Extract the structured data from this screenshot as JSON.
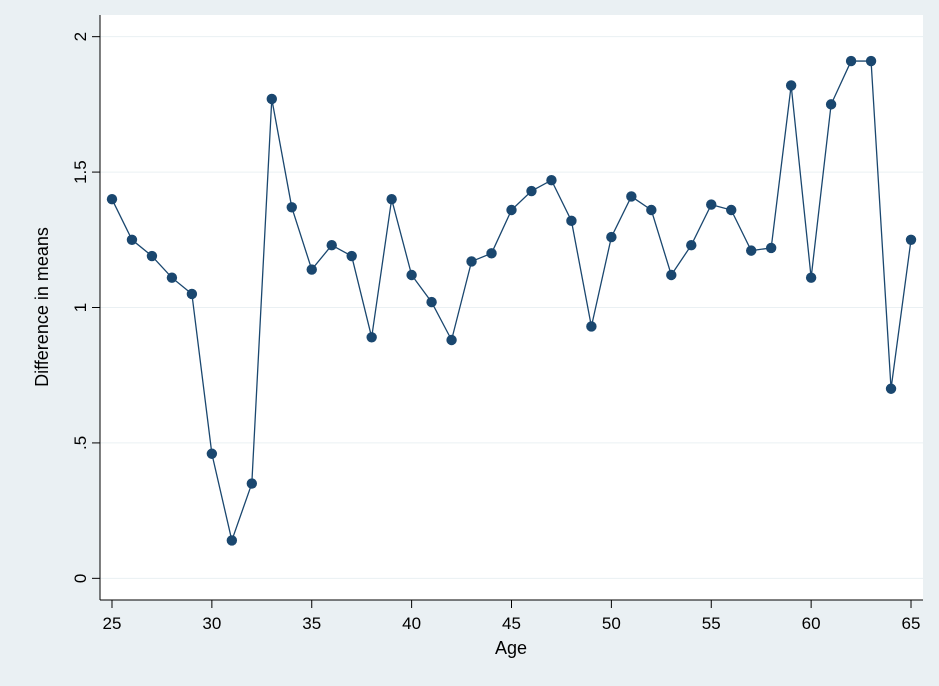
{
  "chart_data": {
    "type": "line",
    "xlabel": "Age",
    "ylabel": "Difference in means",
    "xlim": [
      24.4,
      65.6
    ],
    "ylim": [
      -0.08,
      2.08
    ],
    "xticks": [
      25,
      30,
      35,
      40,
      45,
      50,
      55,
      60,
      65
    ],
    "xtick_labels": [
      "25",
      "30",
      "35",
      "40",
      "45",
      "50",
      "55",
      "60",
      "65"
    ],
    "yticks": [
      0,
      0.5,
      1,
      1.5,
      2
    ],
    "ytick_labels": [
      "0",
      ".5",
      "1",
      "1.5",
      "2"
    ],
    "grid": true,
    "colors": {
      "background": "#eaf0f3",
      "plot_area": "#ffffff",
      "series": "#1a476f",
      "grid": "#eaf0f3"
    },
    "series": [
      {
        "x": [
          25,
          26,
          27,
          28,
          29,
          30,
          31,
          32,
          33,
          34,
          35,
          36,
          37,
          38,
          39,
          40,
          41,
          42,
          43,
          44,
          45,
          46,
          47,
          48,
          49,
          50,
          51,
          52,
          53,
          54,
          55,
          56,
          57,
          58,
          59,
          60,
          61,
          62,
          63,
          64,
          65
        ],
        "values": [
          1.4,
          1.25,
          1.19,
          1.11,
          1.05,
          0.46,
          0.14,
          0.35,
          1.77,
          1.37,
          1.14,
          1.23,
          1.19,
          0.89,
          1.4,
          1.12,
          1.02,
          0.88,
          1.17,
          1.2,
          1.36,
          1.43,
          1.47,
          1.32,
          0.93,
          1.26,
          1.41,
          1.36,
          1.12,
          1.23,
          1.38,
          1.36,
          1.21,
          1.22,
          1.82,
          1.11,
          1.75,
          1.91,
          1.91,
          0.7,
          1.25
        ]
      }
    ]
  }
}
